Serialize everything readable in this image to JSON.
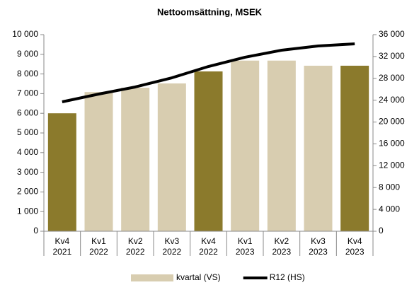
{
  "chart_data": {
    "type": "bar-line",
    "title": "Nettoomsättning, MSEK",
    "categories": [
      [
        "Kv4",
        "2021"
      ],
      [
        "Kv1",
        "2022"
      ],
      [
        "Kv2",
        "2022"
      ],
      [
        "Kv3",
        "2022"
      ],
      [
        "Kv4",
        "2022"
      ],
      [
        "Kv1",
        "2023"
      ],
      [
        "Kv2",
        "2023"
      ],
      [
        "Kv3",
        "2023"
      ],
      [
        "Kv4",
        "2023"
      ]
    ],
    "series": [
      {
        "name": "kvartal (VS)",
        "type": "bar",
        "color": "#d8cdb0",
        "colors": [
          "#8b7a2c",
          "#d8cdb0",
          "#d8cdb0",
          "#d8cdb0",
          "#8b7a2c",
          "#d8cdb0",
          "#d8cdb0",
          "#d8cdb0",
          "#8b7a2c"
        ],
        "values": [
          6000,
          7080,
          7300,
          7520,
          8130,
          8680,
          8680,
          8420,
          8420
        ]
      },
      {
        "name": "R12 (HS)",
        "type": "line",
        "axis": "y2",
        "color": "#000000",
        "values": [
          23700,
          25120,
          26420,
          28100,
          30170,
          31860,
          33150,
          33930,
          34320
        ]
      }
    ],
    "ylim": [
      0,
      10000
    ],
    "yticks": [
      0,
      {
        "value": 1000,
        "label": "1 000"
      },
      {
        "value": 2000,
        "label": "2 000"
      },
      {
        "value": 3000,
        "label": "3 000"
      },
      {
        "value": 4000,
        "label": "4 000"
      },
      {
        "value": 5000,
        "label": "5 000"
      },
      {
        "value": 6000,
        "label": "6 000"
      },
      {
        "value": 7000,
        "label": "7 000"
      },
      {
        "value": 8000,
        "label": "8 000"
      },
      {
        "value": 9000,
        "label": "9 000"
      },
      {
        "value": 10000,
        "label": "10 000"
      }
    ],
    "y2lim": [
      0,
      36000
    ],
    "y2ticks": [
      0,
      {
        "value": 4000,
        "label": "4 000"
      },
      {
        "value": 8000,
        "label": "8 000"
      },
      {
        "value": 12000,
        "label": "12 000"
      },
      {
        "value": 16000,
        "label": "16 000"
      },
      {
        "value": 20000,
        "label": "20 000"
      },
      {
        "value": 24000,
        "label": "24 000"
      },
      {
        "value": 28000,
        "label": "28 000"
      },
      {
        "value": 32000,
        "label": "32 000"
      },
      {
        "value": 36000,
        "label": "36 000"
      }
    ],
    "grid": false
  }
}
